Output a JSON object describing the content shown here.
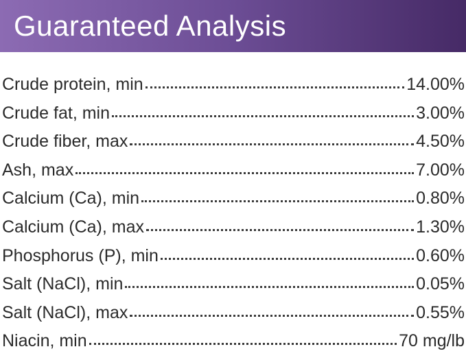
{
  "header": {
    "title": "Guaranteed Analysis"
  },
  "table": {
    "rows": [
      [
        "Crude protein, min",
        "14.00%"
      ],
      [
        "Crude fat, min",
        "3.00%"
      ],
      [
        "Crude fiber, max",
        "4.50%"
      ],
      [
        "Ash, max",
        "7.00%"
      ],
      [
        "Calcium (Ca), min",
        "0.80%"
      ],
      [
        "Calcium (Ca), max",
        "1.30%"
      ],
      [
        "Phosphorus (P), min",
        "0.60%"
      ],
      [
        "Salt (NaCl), min",
        "0.05%"
      ],
      [
        "Salt (NaCl), max",
        "0.55%"
      ],
      [
        "Niacin, min",
        "70 mg/lb"
      ]
    ]
  }
}
